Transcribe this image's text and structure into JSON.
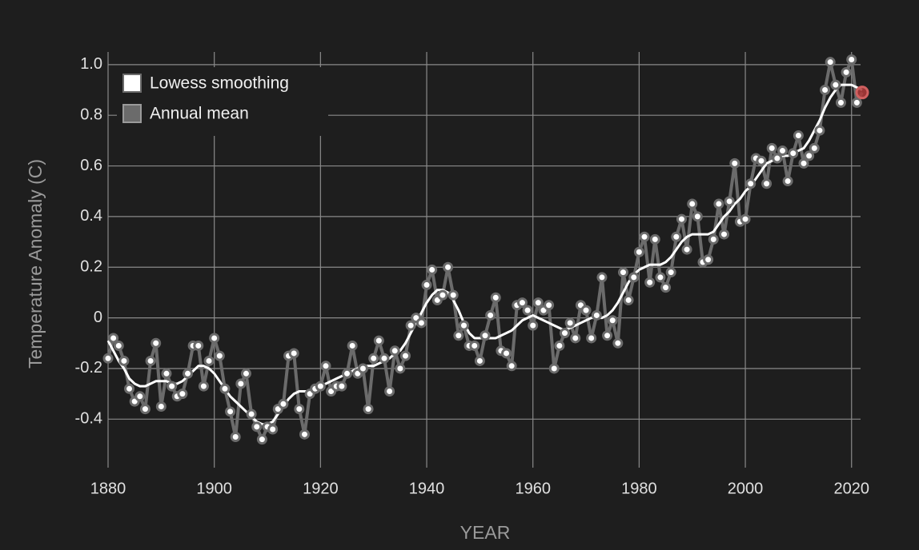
{
  "chart_data": {
    "type": "line",
    "x_label": "YEAR",
    "y_label": "Temperature Anomaly (C)",
    "x": [
      1880,
      1881,
      1882,
      1883,
      1884,
      1885,
      1886,
      1887,
      1888,
      1889,
      1890,
      1891,
      1892,
      1893,
      1894,
      1895,
      1896,
      1897,
      1898,
      1899,
      1900,
      1901,
      1902,
      1903,
      1904,
      1905,
      1906,
      1907,
      1908,
      1909,
      1910,
      1911,
      1912,
      1913,
      1914,
      1915,
      1916,
      1917,
      1918,
      1919,
      1920,
      1921,
      1922,
      1923,
      1924,
      1925,
      1926,
      1927,
      1928,
      1929,
      1930,
      1931,
      1932,
      1933,
      1934,
      1935,
      1936,
      1937,
      1938,
      1939,
      1940,
      1941,
      1942,
      1943,
      1944,
      1945,
      1946,
      1947,
      1948,
      1949,
      1950,
      1951,
      1952,
      1953,
      1954,
      1955,
      1956,
      1957,
      1958,
      1959,
      1960,
      1961,
      1962,
      1963,
      1964,
      1965,
      1966,
      1967,
      1968,
      1969,
      1970,
      1971,
      1972,
      1973,
      1974,
      1975,
      1976,
      1977,
      1978,
      1979,
      1980,
      1981,
      1982,
      1983,
      1984,
      1985,
      1986,
      1987,
      1988,
      1989,
      1990,
      1991,
      1992,
      1993,
      1994,
      1995,
      1996,
      1997,
      1998,
      1999,
      2000,
      2001,
      2002,
      2003,
      2004,
      2005,
      2006,
      2007,
      2008,
      2009,
      2010,
      2011,
      2012,
      2013,
      2014,
      2015,
      2016,
      2017,
      2018,
      2019,
      2020,
      2021,
      2022
    ],
    "series": [
      {
        "name": "Lowess smoothing",
        "color": "#ffffff",
        "markers": false,
        "values": [
          -0.09,
          -0.13,
          -0.17,
          -0.2,
          -0.24,
          -0.26,
          -0.27,
          -0.27,
          -0.26,
          -0.25,
          -0.25,
          -0.25,
          -0.26,
          -0.26,
          -0.25,
          -0.23,
          -0.21,
          -0.19,
          -0.19,
          -0.2,
          -0.22,
          -0.25,
          -0.28,
          -0.31,
          -0.33,
          -0.35,
          -0.37,
          -0.39,
          -0.41,
          -0.42,
          -0.42,
          -0.41,
          -0.38,
          -0.35,
          -0.32,
          -0.3,
          -0.29,
          -0.29,
          -0.29,
          -0.28,
          -0.27,
          -0.26,
          -0.25,
          -0.24,
          -0.23,
          -0.22,
          -0.21,
          -0.2,
          -0.19,
          -0.19,
          -0.19,
          -0.18,
          -0.17,
          -0.16,
          -0.14,
          -0.13,
          -0.1,
          -0.06,
          -0.02,
          0.02,
          0.06,
          0.09,
          0.11,
          0.11,
          0.1,
          0.07,
          0.03,
          -0.02,
          -0.06,
          -0.08,
          -0.08,
          -0.08,
          -0.08,
          -0.08,
          -0.07,
          -0.06,
          -0.05,
          -0.03,
          -0.01,
          0.0,
          0.01,
          0.0,
          -0.01,
          -0.02,
          -0.03,
          -0.04,
          -0.05,
          -0.04,
          -0.03,
          -0.02,
          -0.01,
          0.0,
          0.0,
          0.0,
          0.01,
          0.03,
          0.06,
          0.1,
          0.14,
          0.17,
          0.19,
          0.2,
          0.21,
          0.21,
          0.21,
          0.22,
          0.24,
          0.27,
          0.3,
          0.32,
          0.33,
          0.33,
          0.33,
          0.33,
          0.34,
          0.37,
          0.4,
          0.42,
          0.45,
          0.47,
          0.5,
          0.52,
          0.55,
          0.58,
          0.61,
          0.62,
          0.63,
          0.64,
          0.64,
          0.65,
          0.66,
          0.67,
          0.7,
          0.74,
          0.78,
          0.83,
          0.87,
          0.9,
          0.92,
          0.92,
          0.92,
          0.91,
          0.9
        ]
      },
      {
        "name": "Annual mean",
        "color": "#6b6b6b",
        "markers": true,
        "highlight_last_color": "#b03a3a",
        "values": [
          -0.16,
          -0.08,
          -0.11,
          -0.17,
          -0.28,
          -0.33,
          -0.31,
          -0.36,
          -0.17,
          -0.1,
          -0.35,
          -0.22,
          -0.27,
          -0.31,
          -0.3,
          -0.22,
          -0.11,
          -0.11,
          -0.27,
          -0.17,
          -0.08,
          -0.15,
          -0.28,
          -0.37,
          -0.47,
          -0.26,
          -0.22,
          -0.38,
          -0.43,
          -0.48,
          -0.43,
          -0.44,
          -0.36,
          -0.34,
          -0.15,
          -0.14,
          -0.36,
          -0.46,
          -0.3,
          -0.28,
          -0.27,
          -0.19,
          -0.29,
          -0.27,
          -0.27,
          -0.22,
          -0.11,
          -0.22,
          -0.2,
          -0.36,
          -0.16,
          -0.09,
          -0.16,
          -0.29,
          -0.13,
          -0.2,
          -0.15,
          -0.03,
          0.0,
          -0.02,
          0.13,
          0.19,
          0.07,
          0.09,
          0.2,
          0.09,
          -0.07,
          -0.03,
          -0.11,
          -0.11,
          -0.17,
          -0.07,
          0.01,
          0.08,
          -0.13,
          -0.14,
          -0.19,
          0.05,
          0.06,
          0.03,
          -0.03,
          0.06,
          0.03,
          0.05,
          -0.2,
          -0.11,
          -0.06,
          -0.02,
          -0.08,
          0.05,
          0.03,
          -0.08,
          0.01,
          0.16,
          -0.07,
          -0.01,
          -0.1,
          0.18,
          0.07,
          0.16,
          0.26,
          0.32,
          0.14,
          0.31,
          0.16,
          0.12,
          0.18,
          0.32,
          0.39,
          0.27,
          0.45,
          0.4,
          0.22,
          0.23,
          0.31,
          0.45,
          0.33,
          0.46,
          0.61,
          0.38,
          0.39,
          0.53,
          0.63,
          0.62,
          0.53,
          0.67,
          0.63,
          0.66,
          0.54,
          0.65,
          0.72,
          0.61,
          0.64,
          0.67,
          0.74,
          0.9,
          1.01,
          0.92,
          0.85,
          0.97,
          1.02,
          0.85,
          0.89
        ]
      }
    ],
    "xlim": [
      1880,
      2022
    ],
    "ylim": [
      -0.56,
      1.05
    ],
    "xticks": [
      1880,
      1900,
      1920,
      1940,
      1960,
      1980,
      2000,
      2020
    ],
    "yticks": [
      -0.4,
      -0.2,
      0,
      0.2,
      0.4,
      0.6,
      0.8,
      {
        "value": 1,
        "label": "1.0"
      }
    ],
    "grid": true,
    "legend": "upper left"
  }
}
